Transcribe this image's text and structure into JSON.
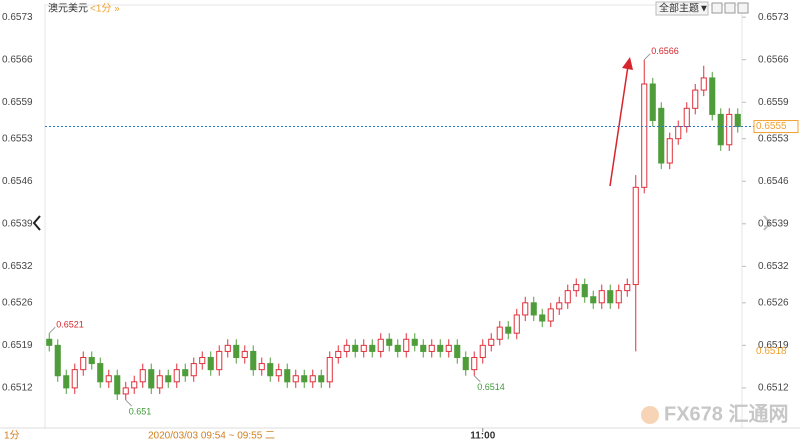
{
  "chart_data": {
    "type": "candlestick",
    "symbol": "澳元美元",
    "period": "<1分 »",
    "theme_button": "全部主题▼",
    "footer_period": "1分",
    "footer_range": "2020/03/03 09:54 ~ 09:55 二",
    "watermark": "FX678 汇通网",
    "categories": [
      null,
      null,
      null,
      null,
      null,
      null,
      null,
      null,
      null,
      null,
      null,
      null,
      null,
      null,
      null,
      null,
      null,
      null,
      null,
      null,
      null,
      null,
      null,
      null,
      null,
      null,
      null,
      null,
      null,
      null,
      null,
      null,
      null,
      null,
      null,
      null,
      null,
      null,
      null,
      null,
      null,
      null,
      null,
      null,
      null,
      null,
      null,
      null,
      null,
      null,
      null,
      "11:00",
      null,
      null,
      null,
      null,
      null,
      null,
      null,
      null,
      null,
      null,
      null,
      null,
      null,
      null,
      null,
      null,
      null,
      null,
      null,
      null,
      null,
      null,
      null,
      null,
      null,
      null,
      null,
      null,
      null,
      null
    ],
    "open": [
      0.652,
      0.6519,
      0.6514,
      0.6512,
      0.6515,
      0.6517,
      0.6516,
      0.6513,
      0.6514,
      0.6511,
      0.6512,
      0.6513,
      0.6515,
      0.6512,
      0.6514,
      0.6513,
      0.6515,
      0.6514,
      0.6516,
      0.6517,
      0.6515,
      0.6518,
      0.6519,
      0.6517,
      0.6518,
      0.6515,
      0.6516,
      0.6514,
      0.6515,
      0.6513,
      0.6514,
      0.6513,
      0.6514,
      0.6513,
      0.6517,
      0.6518,
      0.6519,
      0.6518,
      0.6519,
      0.6518,
      0.652,
      0.6519,
      0.6518,
      0.652,
      0.6519,
      0.6518,
      0.6519,
      0.6518,
      0.6519,
      0.6517,
      0.6515,
      0.6517,
      0.6519,
      0.652,
      0.6522,
      0.6521,
      0.6524,
      0.6526,
      0.6524,
      0.6523,
      0.6525,
      0.6526,
      0.6528,
      0.6529,
      0.6527,
      0.6526,
      0.6528,
      0.6526,
      0.6528,
      0.6529,
      0.6545,
      0.6562,
      0.6558,
      0.6549,
      0.6553,
      0.6555,
      0.6558,
      0.6561,
      0.6563,
      0.6557,
      0.6552,
      0.6557
    ],
    "high": [
      0.6521,
      0.652,
      0.6515,
      0.6516,
      0.6518,
      0.6518,
      0.6517,
      0.6515,
      0.6515,
      0.6513,
      0.6514,
      0.6516,
      0.6516,
      0.6515,
      0.6515,
      0.6516,
      0.6516,
      0.6517,
      0.6518,
      0.6518,
      0.6519,
      0.652,
      0.652,
      0.6519,
      0.6519,
      0.6517,
      0.6517,
      0.6516,
      0.6516,
      0.6515,
      0.6515,
      0.6515,
      0.6515,
      0.6518,
      0.6519,
      0.652,
      0.652,
      0.652,
      0.652,
      0.6521,
      0.6521,
      0.652,
      0.6521,
      0.6521,
      0.652,
      0.652,
      0.652,
      0.652,
      0.652,
      0.6518,
      0.6518,
      0.652,
      0.6521,
      0.6523,
      0.6523,
      0.6525,
      0.6527,
      0.6527,
      0.6525,
      0.6526,
      0.6527,
      0.6529,
      0.653,
      0.653,
      0.6528,
      0.6529,
      0.6529,
      0.6529,
      0.653,
      0.6547,
      0.6566,
      0.6563,
      0.6559,
      0.6554,
      0.6556,
      0.6559,
      0.6562,
      0.6565,
      0.6564,
      0.6558,
      0.6558,
      0.6558
    ],
    "low": [
      0.6518,
      0.6513,
      0.6511,
      0.6511,
      0.6514,
      0.6515,
      0.6512,
      0.6512,
      0.651,
      0.651,
      0.6511,
      0.6512,
      0.6511,
      0.6511,
      0.6512,
      0.6512,
      0.6513,
      0.6513,
      0.6515,
      0.6514,
      0.6514,
      0.6517,
      0.6516,
      0.6516,
      0.6514,
      0.6514,
      0.6513,
      0.6513,
      0.6512,
      0.6512,
      0.6512,
      0.6512,
      0.6512,
      0.6512,
      0.6516,
      0.6517,
      0.6517,
      0.6517,
      0.6517,
      0.6517,
      0.6518,
      0.6517,
      0.6517,
      0.6518,
      0.6517,
      0.6517,
      0.6517,
      0.6517,
      0.6516,
      0.6514,
      0.6514,
      0.6516,
      0.6518,
      0.6519,
      0.652,
      0.652,
      0.6523,
      0.6523,
      0.6522,
      0.6522,
      0.6524,
      0.6525,
      0.6527,
      0.6526,
      0.6525,
      0.6525,
      0.6525,
      0.6525,
      0.6527,
      0.6518,
      0.6544,
      0.6555,
      0.6548,
      0.6548,
      0.6552,
      0.6554,
      0.6557,
      0.656,
      0.6556,
      0.6551,
      0.6551,
      0.6554
    ],
    "close": [
      0.6519,
      0.6514,
      0.6512,
      0.6515,
      0.6517,
      0.6516,
      0.6513,
      0.6514,
      0.6511,
      0.6512,
      0.6513,
      0.6515,
      0.6512,
      0.6514,
      0.6513,
      0.6515,
      0.6514,
      0.6516,
      0.6517,
      0.6515,
      0.6518,
      0.6519,
      0.6517,
      0.6518,
      0.6515,
      0.6516,
      0.6514,
      0.6515,
      0.6513,
      0.6514,
      0.6513,
      0.6514,
      0.6513,
      0.6517,
      0.6518,
      0.6519,
      0.6518,
      0.6519,
      0.6518,
      0.652,
      0.6519,
      0.6518,
      0.652,
      0.6519,
      0.6518,
      0.6519,
      0.6518,
      0.6519,
      0.6517,
      0.6515,
      0.6517,
      0.6519,
      0.652,
      0.6522,
      0.6521,
      0.6524,
      0.6526,
      0.6524,
      0.6523,
      0.6525,
      0.6526,
      0.6528,
      0.6529,
      0.6527,
      0.6526,
      0.6528,
      0.6526,
      0.6528,
      0.6529,
      0.6545,
      0.6562,
      0.6556,
      0.6549,
      0.6553,
      0.6555,
      0.6558,
      0.6561,
      0.6563,
      0.6557,
      0.6552,
      0.6557,
      0.6555
    ],
    "up_color": "#e0303a",
    "down_color": "#4f9d3a",
    "high_labels": [
      0.6521,
      0.6566
    ],
    "low_labels": [
      0.651,
      0.6514
    ],
    "last_price": 0.6555,
    "last_price_color": "#2a78c8",
    "last_label_color": "#f0a030",
    "marker_price": 0.6518,
    "ylim": [
      0.65054,
      0.6575
    ],
    "yticks": [
      0.6573,
      0.6566,
      0.6559,
      0.6553,
      0.6546,
      0.6539,
      0.6532,
      0.6526,
      0.6519,
      0.6512
    ]
  }
}
